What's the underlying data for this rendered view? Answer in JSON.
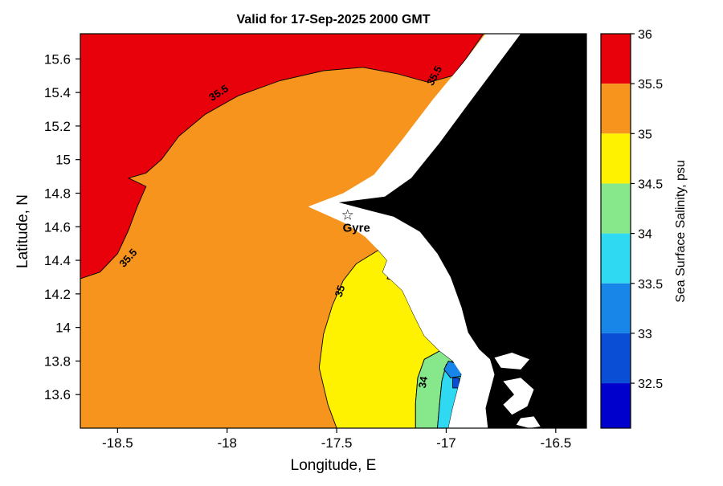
{
  "figure": {
    "title": "Valid for 17-Sep-2025 2000 GMT",
    "xlabel": "Longitude, E",
    "ylabel": "Latitude, N"
  },
  "chart_data": {
    "type": "heatmap",
    "subtype": "filled-contour-salinity-map",
    "title": "Valid for 17-Sep-2025 2000 GMT",
    "xlabel": "Longitude, E",
    "ylabel": "Latitude, N",
    "xlim": [
      -18.67,
      -16.36
    ],
    "ylim": [
      13.4,
      15.75
    ],
    "xticks": [
      -18.5,
      -18,
      -17.5,
      -17,
      -16.5
    ],
    "xtick_labels": [
      "-18.5",
      "-18",
      "-17.5",
      "-17",
      "-16.5"
    ],
    "yticks": [
      15.6,
      15.4,
      15.2,
      15.0,
      14.8,
      14.6,
      14.4,
      14.2,
      14.0,
      13.8,
      13.6
    ],
    "ytick_labels": [
      "15.6",
      "15.4",
      "15.2",
      "15",
      "14.8",
      "14.6",
      "14.4",
      "14.2",
      "14",
      "13.8",
      "13.6"
    ],
    "land_color": "#000000",
    "nodata_color": "#ffffff",
    "colorbar": {
      "label": "Sea Surface Salinity, psu",
      "tick_values": [
        36,
        35.5,
        35,
        34.5,
        34,
        33.5,
        33,
        32.5
      ],
      "tick_labels": [
        "36",
        "35.5",
        "35",
        "34.5",
        "34",
        "33.5",
        "33",
        "32.5"
      ],
      "value_range": [
        32.05,
        36
      ],
      "bands": [
        {
          "min": 35.5,
          "max": 36.0,
          "color": "#e8000b"
        },
        {
          "min": 35.0,
          "max": 35.5,
          "color": "#f7941e"
        },
        {
          "min": 34.5,
          "max": 35.0,
          "color": "#fef200"
        },
        {
          "min": 34.0,
          "max": 34.5,
          "color": "#86e88a"
        },
        {
          "min": 33.5,
          "max": 34.0,
          "color": "#2fd9f2"
        },
        {
          "min": 33.0,
          "max": 33.5,
          "color": "#1786e8"
        },
        {
          "min": 32.5,
          "max": 33.0,
          "color": "#0a4ed6"
        },
        {
          "min": 32.05,
          "max": 32.5,
          "color": "#0000cd"
        }
      ]
    },
    "regions": [
      {
        "name": "salinity-35-35p5-background",
        "band": "35–35.5 psu",
        "color": "#f7941e",
        "contour": false,
        "polygon": [
          [
            -18.67,
            15.75
          ],
          [
            -16.36,
            15.75
          ],
          [
            -16.36,
            13.4
          ],
          [
            -18.67,
            13.4
          ]
        ]
      },
      {
        "name": "salinity-35p5-36",
        "band": "35.5–36 psu",
        "color": "#e8000b",
        "contour": true,
        "polygon": [
          [
            -18.67,
            15.75
          ],
          [
            -16.83,
            15.75
          ],
          [
            -16.91,
            15.6
          ],
          [
            -16.97,
            15.5
          ],
          [
            -17.08,
            15.46
          ],
          [
            -17.22,
            15.51
          ],
          [
            -17.38,
            15.55
          ],
          [
            -17.56,
            15.53
          ],
          [
            -17.76,
            15.47
          ],
          [
            -17.95,
            15.38
          ],
          [
            -18.1,
            15.27
          ],
          [
            -18.22,
            15.14
          ],
          [
            -18.3,
            15.0
          ],
          [
            -18.37,
            14.92
          ],
          [
            -18.45,
            14.89
          ],
          [
            -18.37,
            14.84
          ],
          [
            -18.41,
            14.72
          ],
          [
            -18.45,
            14.58
          ],
          [
            -18.5,
            14.44
          ],
          [
            -18.58,
            14.33
          ],
          [
            -18.67,
            14.29
          ]
        ]
      },
      {
        "name": "salinity-34p5-35",
        "band": "34.5–35 psu",
        "color": "#fef200",
        "contour": true,
        "polygon": [
          [
            -17.31,
            14.46
          ],
          [
            -17.41,
            14.38
          ],
          [
            -17.47,
            14.28
          ],
          [
            -17.52,
            14.13
          ],
          [
            -17.56,
            13.96
          ],
          [
            -17.58,
            13.76
          ],
          [
            -17.54,
            13.54
          ],
          [
            -17.5,
            13.4
          ],
          [
            -17.14,
            13.4
          ],
          [
            -17.14,
            13.55
          ],
          [
            -17.13,
            13.7
          ],
          [
            -17.1,
            13.81
          ],
          [
            -17.03,
            13.86
          ],
          [
            -17.1,
            13.95
          ],
          [
            -17.15,
            14.08
          ],
          [
            -17.2,
            14.22
          ],
          [
            -17.29,
            14.33
          ],
          [
            -17.27,
            14.4
          ]
        ]
      },
      {
        "name": "salinity-35-35p5-spot",
        "band": "35–35.5 psu",
        "color": "#f7941e",
        "contour": true,
        "polygon": [
          [
            -17.24,
            14.36
          ],
          [
            -17.17,
            14.27
          ],
          [
            -17.27,
            14.29
          ]
        ]
      },
      {
        "name": "salinity-34-34p5",
        "band": "34–34.5 psu",
        "color": "#86e88a",
        "contour": true,
        "polygon": [
          [
            -17.03,
            13.86
          ],
          [
            -17.1,
            13.81
          ],
          [
            -17.13,
            13.7
          ],
          [
            -17.14,
            13.55
          ],
          [
            -17.14,
            13.4
          ],
          [
            -17.04,
            13.4
          ],
          [
            -17.03,
            13.55
          ],
          [
            -17.02,
            13.68
          ],
          [
            -17.0,
            13.78
          ],
          [
            -16.97,
            13.8
          ]
        ]
      },
      {
        "name": "salinity-33p5-34",
        "band": "33.5–34 psu",
        "color": "#2fd9f2",
        "contour": true,
        "polygon": [
          [
            -16.97,
            13.8
          ],
          [
            -17.0,
            13.78
          ],
          [
            -17.02,
            13.68
          ],
          [
            -17.03,
            13.55
          ],
          [
            -17.04,
            13.4
          ],
          [
            -16.99,
            13.4
          ],
          [
            -16.97,
            13.52
          ],
          [
            -16.95,
            13.62
          ],
          [
            -16.93,
            13.72
          ]
        ]
      },
      {
        "name": "salinity-33-33p5",
        "band": "33–33.5 psu",
        "color": "#1786e8",
        "contour": true,
        "polygon": [
          [
            -16.99,
            13.8
          ],
          [
            -16.94,
            13.78
          ],
          [
            -16.93,
            13.71
          ],
          [
            -16.98,
            13.7
          ],
          [
            -17.01,
            13.75
          ]
        ]
      },
      {
        "name": "salinity-32p5-33",
        "band": "32.5–33 psu",
        "color": "#0a4ed6",
        "contour": true,
        "polygon": [
          [
            -16.97,
            13.7
          ],
          [
            -16.94,
            13.7
          ],
          [
            -16.94,
            13.64
          ],
          [
            -16.97,
            13.64
          ]
        ]
      },
      {
        "name": "no-data-coastal-mask",
        "band": "no data",
        "color": "#ffffff",
        "contour": false,
        "polygon": [
          [
            -16.82,
            15.75
          ],
          [
            -16.92,
            15.58
          ],
          [
            -17.06,
            15.36
          ],
          [
            -17.2,
            15.12
          ],
          [
            -17.33,
            14.91
          ],
          [
            -17.47,
            14.8
          ],
          [
            -17.63,
            14.72
          ],
          [
            -17.46,
            14.62
          ],
          [
            -17.37,
            14.54
          ],
          [
            -17.31,
            14.46
          ],
          [
            -17.27,
            14.4
          ],
          [
            -17.29,
            14.33
          ],
          [
            -17.2,
            14.22
          ],
          [
            -17.15,
            14.08
          ],
          [
            -17.1,
            13.95
          ],
          [
            -17.03,
            13.86
          ],
          [
            -16.97,
            13.8
          ],
          [
            -16.93,
            13.72
          ],
          [
            -16.95,
            13.62
          ],
          [
            -16.97,
            13.52
          ],
          [
            -16.99,
            13.4
          ],
          [
            -16.36,
            13.4
          ],
          [
            -16.36,
            15.75
          ]
        ]
      },
      {
        "name": "land",
        "band": "land",
        "color": "#000000",
        "contour": false,
        "polygon": [
          [
            -16.66,
            15.75
          ],
          [
            -16.78,
            15.54
          ],
          [
            -16.9,
            15.33
          ],
          [
            -17.03,
            15.1
          ],
          [
            -17.16,
            14.89
          ],
          [
            -17.28,
            14.78
          ],
          [
            -17.49,
            14.745
          ],
          [
            -17.36,
            14.7
          ],
          [
            -17.24,
            14.66
          ],
          [
            -17.12,
            14.57
          ],
          [
            -17.04,
            14.44
          ],
          [
            -16.98,
            14.3
          ],
          [
            -16.93,
            14.12
          ],
          [
            -16.9,
            13.97
          ],
          [
            -16.85,
            13.87
          ],
          [
            -16.8,
            13.81
          ],
          [
            -16.78,
            13.72
          ],
          [
            -16.8,
            13.62
          ],
          [
            -16.82,
            13.52
          ],
          [
            -16.81,
            13.4
          ],
          [
            -16.36,
            13.4
          ],
          [
            -16.36,
            15.75
          ]
        ]
      },
      {
        "name": "estuary-white-1",
        "band": "no data",
        "color": "#ffffff",
        "contour": false,
        "polygon": [
          [
            -16.78,
            13.82
          ],
          [
            -16.7,
            13.85
          ],
          [
            -16.62,
            13.81
          ],
          [
            -16.66,
            13.75
          ],
          [
            -16.75,
            13.76
          ]
        ]
      },
      {
        "name": "estuary-white-2",
        "band": "no data",
        "color": "#ffffff",
        "contour": false,
        "polygon": [
          [
            -16.74,
            13.68
          ],
          [
            -16.66,
            13.7
          ],
          [
            -16.6,
            13.63
          ],
          [
            -16.63,
            13.53
          ],
          [
            -16.7,
            13.48
          ],
          [
            -16.74,
            13.54
          ],
          [
            -16.69,
            13.6
          ]
        ]
      },
      {
        "name": "estuary-white-3",
        "band": "no data",
        "color": "#ffffff",
        "contour": false,
        "polygon": [
          [
            -16.66,
            13.46
          ],
          [
            -16.6,
            13.47
          ],
          [
            -16.57,
            13.41
          ],
          [
            -16.62,
            13.4
          ],
          [
            -16.68,
            13.42
          ]
        ]
      }
    ],
    "contour_labels": [
      {
        "text": "35.5",
        "lon": -18.03,
        "lat": 15.38,
        "rot": -33
      },
      {
        "text": "35.5",
        "lon": -17.04,
        "lat": 15.49,
        "rot": -62
      },
      {
        "text": "35.5",
        "lon": -18.44,
        "lat": 14.4,
        "rot": -48
      },
      {
        "text": "35",
        "lon": -17.47,
        "lat": 14.21,
        "rot": -72
      },
      {
        "text": "34",
        "lon": -17.09,
        "lat": 13.67,
        "rot": -80
      }
    ],
    "marker": {
      "label": "Gyre",
      "symbol": "star",
      "lon": -17.45,
      "lat": 14.67
    }
  }
}
